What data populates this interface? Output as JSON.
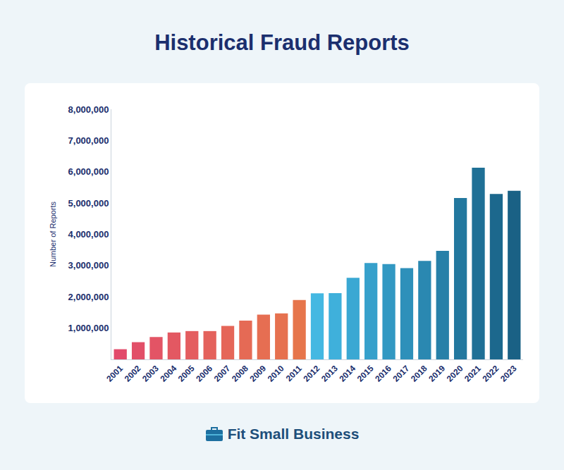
{
  "chart_data": {
    "type": "bar",
    "title": "Historical Fraud Reports",
    "y_label": "Number of Reports",
    "categories": [
      "2001",
      "2002",
      "2003",
      "2004",
      "2005",
      "2006",
      "2007",
      "2008",
      "2009",
      "2010",
      "2011",
      "2012",
      "2013",
      "2014",
      "2015",
      "2016",
      "2017",
      "2018",
      "2019",
      "2020",
      "2021",
      "2022",
      "2023"
    ],
    "values": [
      325000,
      550000,
      715000,
      860000,
      905000,
      905000,
      1070000,
      1240000,
      1430000,
      1470000,
      1900000,
      2110000,
      2120000,
      2610000,
      3080000,
      3050000,
      2920000,
      3150000,
      3470000,
      5160000,
      6130000,
      5290000,
      5390000
    ],
    "colors": [
      "#e24a6b",
      "#e24f68",
      "#e35465",
      "#e35862",
      "#e45d5f",
      "#e4625c",
      "#e56658",
      "#e56a55",
      "#e66e52",
      "#e6714f",
      "#e6754b",
      "#44b8e2",
      "#3fb0db",
      "#3aa8d3",
      "#36a0cb",
      "#3298c2",
      "#2e90ba",
      "#2a88b1",
      "#2780a8",
      "#23789f",
      "#1f7096",
      "#1c688d",
      "#1a6185"
    ],
    "ylim": [
      0,
      8000000
    ],
    "yticks": [
      {
        "value": 1000000,
        "label": "1,000,000"
      },
      {
        "value": 2000000,
        "label": "2,000,000"
      },
      {
        "value": 3000000,
        "label": "3,000,000"
      },
      {
        "value": 4000000,
        "label": "4,000,000"
      },
      {
        "value": 5000000,
        "label": "5,000,000"
      },
      {
        "value": 6000000,
        "label": "6,000,000"
      },
      {
        "value": 7000000,
        "label": "7,000,000"
      },
      {
        "value": 8000000,
        "label": "8,000,000"
      }
    ],
    "grid": false
  },
  "footer": "Fit Small Business"
}
